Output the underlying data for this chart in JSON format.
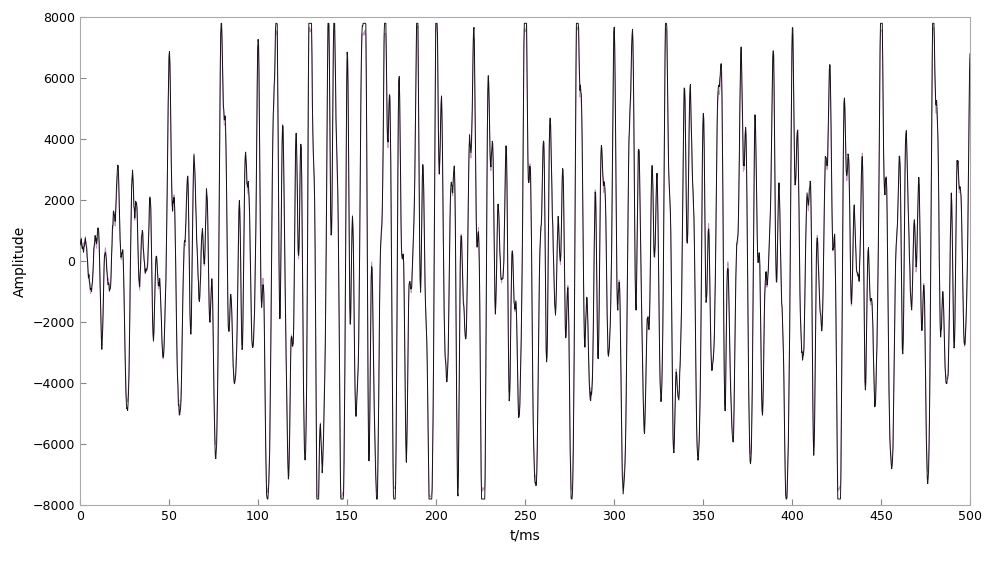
{
  "t_start": 0,
  "t_end": 500,
  "n_points": 2000,
  "ylim": [
    -8000,
    8000
  ],
  "xlim": [
    0,
    500
  ],
  "xlabel": "t/ms",
  "ylabel": "Amplitude",
  "xticks": [
    0,
    50,
    100,
    150,
    200,
    250,
    300,
    350,
    400,
    450,
    500
  ],
  "yticks": [
    -8000,
    -6000,
    -4000,
    -2000,
    0,
    2000,
    4000,
    6000,
    8000
  ],
  "line1_color": "#000000",
  "line2_color": "#bb88bb",
  "line3_color": "#44aa44",
  "line_width": 0.7,
  "bg_color": "#ffffff",
  "fig_width": 10.0,
  "fig_height": 5.74,
  "seed": 42,
  "xlabel_fontsize": 10,
  "ylabel_fontsize": 10,
  "tick_fontsize": 9
}
